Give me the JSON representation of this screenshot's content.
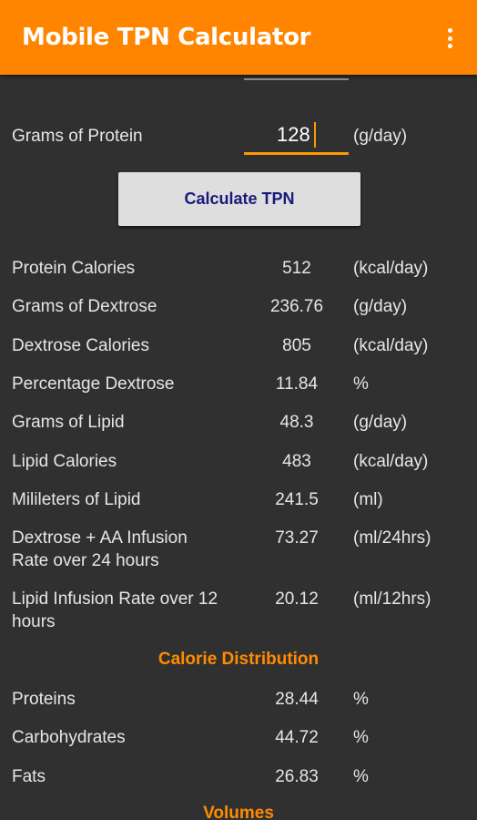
{
  "app": {
    "title": "Mobile TPN Calculator",
    "menu_icon": "more-vert-icon",
    "accent": "#ff8500"
  },
  "protein_input": {
    "label": "Grams of Protein",
    "value": "128",
    "unit": "(g/day)"
  },
  "calculate_button": {
    "label": "Calculate TPN"
  },
  "results": [
    {
      "label": "Protein Calories",
      "value": "512",
      "unit": "(kcal/day)"
    },
    {
      "label": "Grams of Dextrose",
      "value": "236.76",
      "unit": "(g/day)"
    },
    {
      "label": "Dextrose Calories",
      "value": "805",
      "unit": "(kcal/day)"
    },
    {
      "label": "Percentage Dextrose",
      "value": "11.84",
      "unit": "%"
    },
    {
      "label": "Grams of Lipid",
      "value": "48.3",
      "unit": "(g/day)"
    },
    {
      "label": "Lipid Calories",
      "value": "483",
      "unit": "(kcal/day)"
    },
    {
      "label": "Milileters of Lipid",
      "value": "241.5",
      "unit": "(ml)"
    },
    {
      "label_line1": "Dextrose + AA Infusion",
      "label_line2": "Rate over 24 hours",
      "value": "73.27",
      "unit": "(ml/24hrs)"
    },
    {
      "label_line1": "Lipid Infusion Rate over 12",
      "label_line2": "hours",
      "value": "20.12",
      "unit": "(ml/12hrs)"
    }
  ],
  "calorie_distribution": {
    "title": "Calorie Distribution",
    "rows": [
      {
        "label": "Proteins",
        "value": "28.44",
        "unit": "%"
      },
      {
        "label": "Carbohydrates",
        "value": "44.72",
        "unit": "%"
      },
      {
        "label": "Fats",
        "value": "26.83",
        "unit": "%"
      }
    ]
  },
  "volumes": {
    "title": "Volumes"
  }
}
